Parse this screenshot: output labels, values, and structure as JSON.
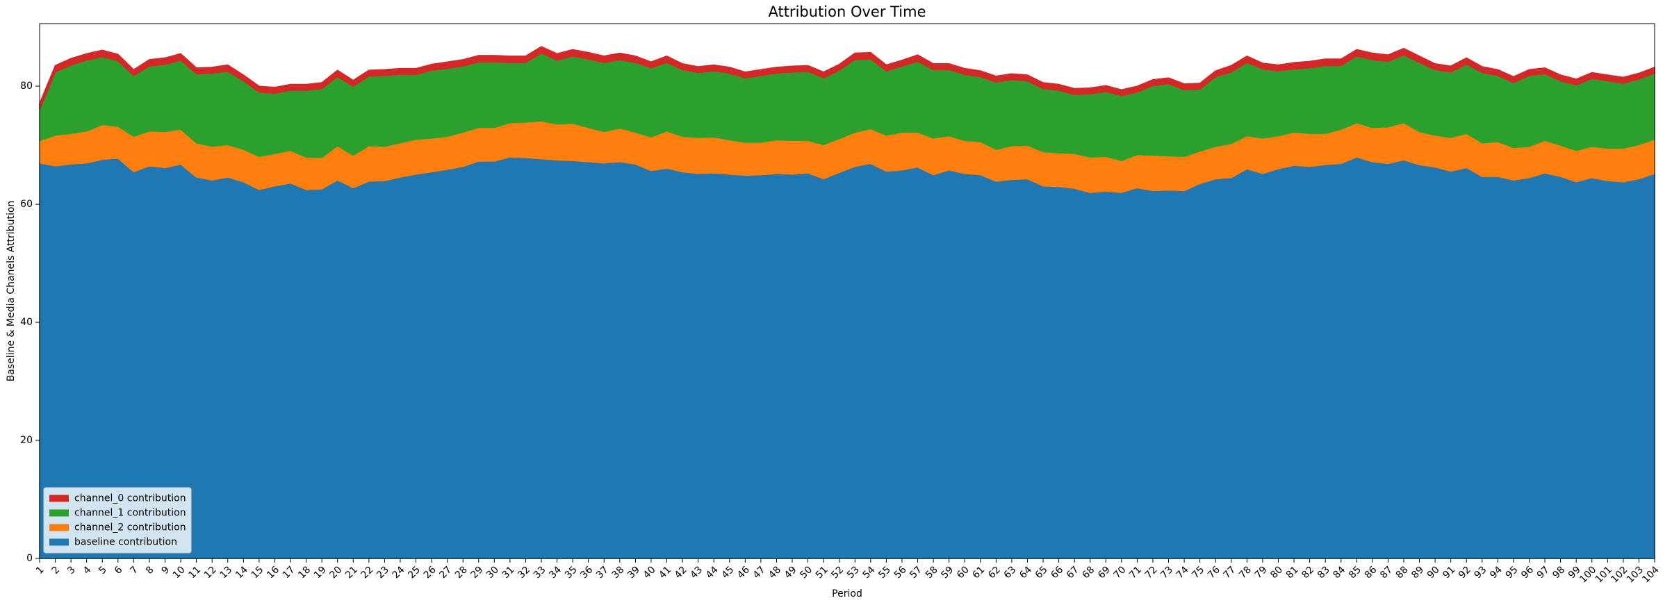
{
  "chart_data": {
    "type": "stacked_area",
    "title": "Attribution Over Time",
    "x_label": "Period",
    "y_label": "Baseline & Media Chanels Attribution",
    "categories": [
      "1",
      "2",
      "3",
      "4",
      "5",
      "6",
      "7",
      "8",
      "9",
      "10",
      "11",
      "12",
      "13",
      "14",
      "15",
      "16",
      "17",
      "18",
      "19",
      "20",
      "21",
      "22",
      "23",
      "24",
      "25",
      "26",
      "27",
      "28",
      "29",
      "30",
      "31",
      "32",
      "33",
      "34",
      "35",
      "36",
      "37",
      "38",
      "39",
      "40",
      "41",
      "42",
      "43",
      "44",
      "45",
      "46",
      "47",
      "48",
      "49",
      "50",
      "51",
      "52",
      "53",
      "54",
      "55",
      "56",
      "57",
      "58",
      "59",
      "60",
      "61",
      "62",
      "63",
      "64",
      "65",
      "66",
      "67",
      "68",
      "69",
      "70",
      "71",
      "72",
      "73",
      "74",
      "75",
      "76",
      "77",
      "78",
      "79",
      "80",
      "81",
      "82",
      "83",
      "84",
      "85",
      "86",
      "87",
      "88",
      "89",
      "90",
      "91",
      "92",
      "93",
      "94",
      "95",
      "96",
      "97",
      "98",
      "99",
      "100",
      "101",
      "102",
      "103",
      "104"
    ],
    "ylim": [
      0,
      90.6
    ],
    "yticks": [
      0,
      20,
      40,
      60,
      80
    ],
    "legend": "lower left",
    "series": [
      {
        "name": "baseline contribution",
        "color": "#1f77b4",
        "values": [
          67,
          66.5,
          66.8,
          67,
          67.6,
          67.8,
          65.5,
          66.5,
          66.2,
          66.8,
          64.6,
          64.1,
          64.6,
          63.8,
          62.5,
          63.1,
          63.6,
          62.5,
          62.6,
          64.1,
          62.8,
          63.9,
          64,
          64.6,
          65.1,
          65.5,
          65.9,
          66.4,
          67.3,
          67.3,
          68,
          67.9,
          67.7,
          67.5,
          67.4,
          67.2,
          67,
          67.2,
          66.8,
          65.7,
          66.1,
          65.5,
          65.2,
          65.3,
          65.1,
          64.9,
          65,
          65.2,
          65.1,
          65.3,
          64.3,
          65.4,
          66.4,
          66.9,
          65.6,
          65.8,
          66.3,
          65,
          65.8,
          65.2,
          65,
          63.9,
          64.2,
          64.3,
          63.1,
          63,
          62.7,
          62,
          62.2,
          62,
          62.8,
          62.3,
          62.4,
          62.3,
          63.5,
          64.3,
          64.5,
          66,
          65.2,
          66,
          66.6,
          66.4,
          66.7,
          66.9,
          68,
          67.2,
          66.9,
          67.5,
          66.7,
          66.3,
          65.6,
          66.2,
          64.7,
          64.7,
          64.1,
          64.5,
          65.3,
          64.7,
          63.8,
          64.5,
          64,
          63.8,
          64.3,
          65.2
        ]
      },
      {
        "name": "channel_2 contribution",
        "color": "#ff7f0e",
        "values": [
          3.8,
          5.2,
          5.2,
          5.4,
          5.9,
          5.4,
          6.0,
          5.9,
          6.1,
          5.9,
          5.8,
          5.7,
          5.5,
          5.5,
          5.6,
          5.5,
          5.5,
          5.5,
          5.3,
          5.8,
          5.5,
          6.0,
          5.8,
          5.8,
          5.9,
          5.7,
          5.6,
          5.8,
          5.7,
          5.7,
          5.8,
          6.0,
          6.4,
          6.1,
          6.3,
          5.8,
          5.3,
          5.7,
          5.4,
          5.7,
          6.3,
          6.0,
          6.1,
          6.1,
          5.8,
          5.6,
          5.5,
          5.7,
          5.7,
          5.5,
          5.8,
          5.7,
          5.8,
          5.9,
          6.1,
          6.4,
          5.9,
          6.2,
          5.8,
          5.6,
          5.6,
          5.4,
          5.7,
          5.7,
          5.8,
          5.7,
          5.9,
          6.0,
          5.9,
          5.4,
          5.6,
          6.0,
          5.8,
          5.8,
          5.5,
          5.5,
          5.8,
          5.6,
          6.0,
          5.6,
          5.6,
          5.6,
          5.3,
          5.8,
          5.8,
          5.8,
          6.2,
          6.3,
          5.6,
          5.4,
          5.7,
          5.8,
          5.7,
          5.9,
          5.5,
          5.3,
          5.5,
          5.3,
          5.3,
          5.3,
          5.5,
          5.7,
          5.8,
          5.8
        ]
      },
      {
        "name": "channel_1 contribution",
        "color": "#2ca02c",
        "values": [
          5.2,
          10.7,
          11.6,
          12.0,
          11.5,
          11.1,
          10.3,
          11.0,
          11.4,
          11.7,
          11.7,
          12.4,
          12.4,
          11.6,
          10.9,
          10.2,
          10.2,
          11.3,
          11.7,
          11.7,
          11.7,
          11.8,
          12.0,
          11.6,
          11.0,
          11.5,
          11.5,
          11.2,
          11.1,
          11.1,
          10.2,
          10.1,
          11.5,
          10.8,
          11.4,
          11.6,
          11.7,
          11.6,
          11.8,
          11.7,
          11.6,
          11.3,
          11.0,
          11.2,
          11.3,
          10.9,
          11.3,
          11.3,
          11.6,
          11.7,
          11.3,
          11.6,
          12.3,
          11.8,
          10.9,
          11.2,
          12.0,
          11.6,
          11.2,
          11.2,
          11.0,
          11.4,
          11.2,
          10.9,
          10.7,
          10.6,
          10.0,
          10.7,
          11.0,
          11.0,
          10.6,
          11.8,
          12.2,
          11.3,
          10.5,
          11.8,
          12.1,
          12.4,
          11.7,
          11.0,
          10.7,
          11.1,
          11.5,
          10.8,
          11.3,
          11.5,
          11.1,
          11.5,
          11.7,
          11.1,
          11.1,
          11.7,
          11.9,
          11.2,
          11.0,
          12.0,
          11.3,
          10.9,
          11.1,
          11.5,
          11.4,
          11.0,
          11.1,
          11.2
        ]
      },
      {
        "name": "channel_0 contribution",
        "color": "#d62728",
        "values": [
          1.1,
          1.1,
          1.1,
          1.1,
          1.1,
          1.1,
          1.0,
          1.1,
          1.1,
          1.1,
          1.0,
          1.0,
          1.1,
          1.0,
          1.0,
          1.0,
          1.0,
          1.0,
          1.0,
          1.1,
          1.0,
          1.0,
          1.0,
          1.0,
          1.0,
          1.0,
          1.1,
          1.1,
          1.1,
          1.1,
          1.1,
          1.1,
          1.1,
          1.1,
          1.1,
          1.1,
          1.1,
          1.1,
          1.1,
          1.0,
          1.1,
          1.0,
          1.0,
          1.0,
          1.0,
          1.0,
          1.0,
          1.0,
          1.0,
          1.0,
          1.0,
          1.0,
          1.1,
          1.1,
          1.0,
          1.0,
          1.1,
          1.0,
          1.0,
          1.0,
          1.0,
          1.0,
          1.0,
          1.0,
          1.0,
          1.0,
          1.0,
          1.0,
          1.0,
          1.0,
          1.0,
          1.0,
          1.0,
          1.0,
          1.0,
          1.0,
          1.1,
          1.1,
          1.0,
          1.0,
          1.1,
          1.1,
          1.1,
          1.1,
          1.1,
          1.1,
          1.1,
          1.1,
          1.1,
          1.0,
          1.0,
          1.1,
          1.0,
          1.0,
          1.0,
          1.0,
          1.0,
          1.0,
          1.0,
          1.0,
          1.0,
          1.0,
          1.0,
          1.0
        ]
      }
    ]
  }
}
